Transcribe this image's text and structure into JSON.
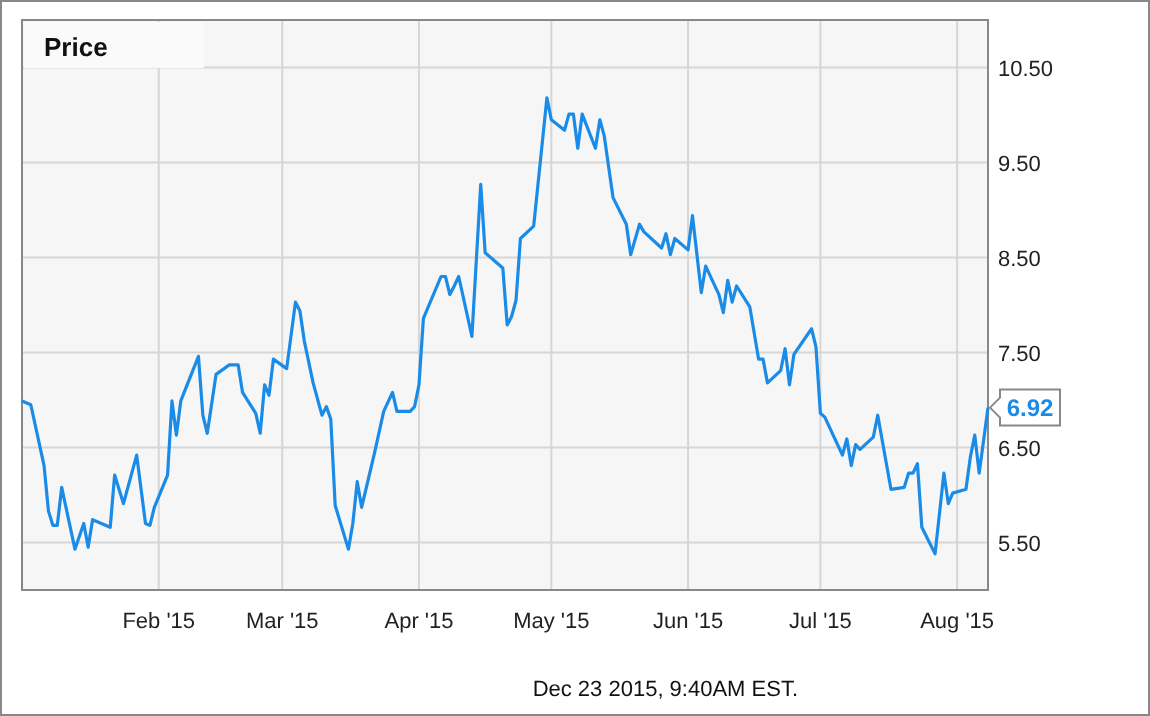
{
  "chart_data": {
    "type": "line",
    "title": "Price",
    "x": [
      "2015-01-01",
      "2015-01-03",
      "2015-01-06",
      "2015-01-07",
      "2015-01-08",
      "2015-01-09",
      "2015-01-10",
      "2015-01-13",
      "2015-01-15",
      "2015-01-16",
      "2015-01-17",
      "2015-01-21",
      "2015-01-22",
      "2015-01-24",
      "2015-01-27",
      "2015-01-29",
      "2015-01-30",
      "2015-01-31",
      "2015-02-03",
      "2015-02-04",
      "2015-02-05",
      "2015-02-06",
      "2015-02-10",
      "2015-02-11",
      "2015-02-12",
      "2015-02-14",
      "2015-02-17",
      "2015-02-19",
      "2015-02-20",
      "2015-02-23",
      "2015-02-24",
      "2015-02-25",
      "2015-02-26",
      "2015-02-27",
      "2015-03-02",
      "2015-03-04",
      "2015-03-05",
      "2015-03-06",
      "2015-03-08",
      "2015-03-10",
      "2015-03-11",
      "2015-03-12",
      "2015-03-13",
      "2015-03-16",
      "2015-03-17",
      "2015-03-18",
      "2015-03-19",
      "2015-03-22",
      "2015-03-24",
      "2015-03-26",
      "2015-03-27",
      "2015-03-30",
      "2015-03-31",
      "2015-04-01",
      "2015-04-02",
      "2015-04-06",
      "2015-04-07",
      "2015-04-08",
      "2015-04-09",
      "2015-04-10",
      "2015-04-13",
      "2015-04-15",
      "2015-04-16",
      "2015-04-20",
      "2015-04-21",
      "2015-04-22",
      "2015-04-23",
      "2015-04-24",
      "2015-04-27",
      "2015-04-30",
      "2015-05-01",
      "2015-05-04",
      "2015-05-05",
      "2015-05-06",
      "2015-05-07",
      "2015-05-08",
      "2015-05-11",
      "2015-05-12",
      "2015-05-13",
      "2015-05-15",
      "2015-05-18",
      "2015-05-19",
      "2015-05-21",
      "2015-05-22",
      "2015-05-26",
      "2015-05-27",
      "2015-05-28",
      "2015-05-29",
      "2015-06-01",
      "2015-06-02",
      "2015-06-04",
      "2015-06-05",
      "2015-06-08",
      "2015-06-09",
      "2015-06-10",
      "2015-06-11",
      "2015-06-12",
      "2015-06-15",
      "2015-06-17",
      "2015-06-18",
      "2015-06-19",
      "2015-06-22",
      "2015-06-23",
      "2015-06-24",
      "2015-06-25",
      "2015-06-29",
      "2015-06-30",
      "2015-07-01",
      "2015-07-02",
      "2015-07-06",
      "2015-07-07",
      "2015-07-08",
      "2015-07-09",
      "2015-07-10",
      "2015-07-13",
      "2015-07-14",
      "2015-07-17",
      "2015-07-20",
      "2015-07-21",
      "2015-07-22",
      "2015-07-23",
      "2015-07-24",
      "2015-07-27",
      "2015-07-29",
      "2015-07-30",
      "2015-07-31",
      "2015-08-03",
      "2015-08-04",
      "2015-08-05",
      "2015-08-06",
      "2015-08-08"
    ],
    "series": [
      {
        "color": "#1a8be6",
        "values": [
          6.99,
          6.95,
          6.31,
          5.83,
          5.68,
          5.68,
          6.08,
          5.43,
          5.7,
          5.45,
          5.74,
          5.66,
          6.21,
          5.91,
          6.42,
          5.7,
          5.68,
          5.87,
          6.21,
          6.99,
          6.63,
          6.99,
          7.46,
          6.84,
          6.65,
          7.27,
          7.37,
          7.37,
          7.08,
          6.86,
          6.65,
          7.16,
          7.05,
          7.43,
          7.33,
          8.03,
          7.94,
          7.62,
          7.18,
          6.84,
          6.93,
          6.8,
          5.89,
          5.43,
          5.7,
          6.14,
          5.87,
          6.46,
          6.88,
          7.08,
          6.88,
          6.88,
          6.93,
          7.16,
          7.86,
          8.3,
          8.3,
          8.11,
          8.2,
          8.3,
          7.67,
          9.27,
          8.55,
          8.39,
          7.79,
          7.88,
          8.05,
          8.7,
          8.83,
          10.18,
          9.95,
          9.84,
          10.01,
          10.01,
          9.65,
          10.01,
          9.65,
          9.95,
          9.78,
          9.13,
          8.85,
          8.53,
          8.85,
          8.77,
          8.6,
          8.75,
          8.53,
          8.7,
          8.58,
          8.94,
          8.13,
          8.41,
          8.11,
          7.92,
          8.26,
          8.03,
          8.2,
          7.98,
          7.43,
          7.43,
          7.18,
          7.31,
          7.54,
          7.16,
          7.48,
          7.75,
          7.56,
          6.86,
          6.82,
          6.42,
          6.59,
          6.31,
          6.53,
          6.48,
          6.61,
          6.84,
          6.06,
          6.08,
          6.23,
          6.23,
          6.33,
          5.66,
          5.38,
          6.23,
          5.91,
          6.02,
          6.06,
          6.4,
          6.63,
          6.23,
          6.92
        ]
      }
    ],
    "xlim": [
      "2015-01-01",
      "2015-08-08"
    ],
    "xticks": [
      {
        "value": "2015-02-01",
        "label": "Feb '15"
      },
      {
        "value": "2015-03-01",
        "label": "Mar '15"
      },
      {
        "value": "2015-04-01",
        "label": "Apr '15"
      },
      {
        "value": "2015-05-01",
        "label": "May '15"
      },
      {
        "value": "2015-06-01",
        "label": "Jun '15"
      },
      {
        "value": "2015-07-01",
        "label": "Jul '15"
      },
      {
        "value": "2015-08-01",
        "label": "Aug '15"
      }
    ],
    "ylim": [
      5.0,
      11.0
    ],
    "yticks": [
      {
        "value": 5.5,
        "label": "5.50"
      },
      {
        "value": 6.5,
        "label": "6.50"
      },
      {
        "value": 7.5,
        "label": "7.50"
      },
      {
        "value": 8.5,
        "label": "8.50"
      },
      {
        "value": 9.5,
        "label": "9.50"
      },
      {
        "value": 10.5,
        "label": "10.50"
      }
    ],
    "grid": true,
    "marker": "none",
    "line_style": "solid",
    "annotations": [
      {
        "text": "6.92",
        "x": "2015-08-08",
        "y": 6.92
      },
      "Dec 23 2015, 9:40AM EST."
    ]
  }
}
